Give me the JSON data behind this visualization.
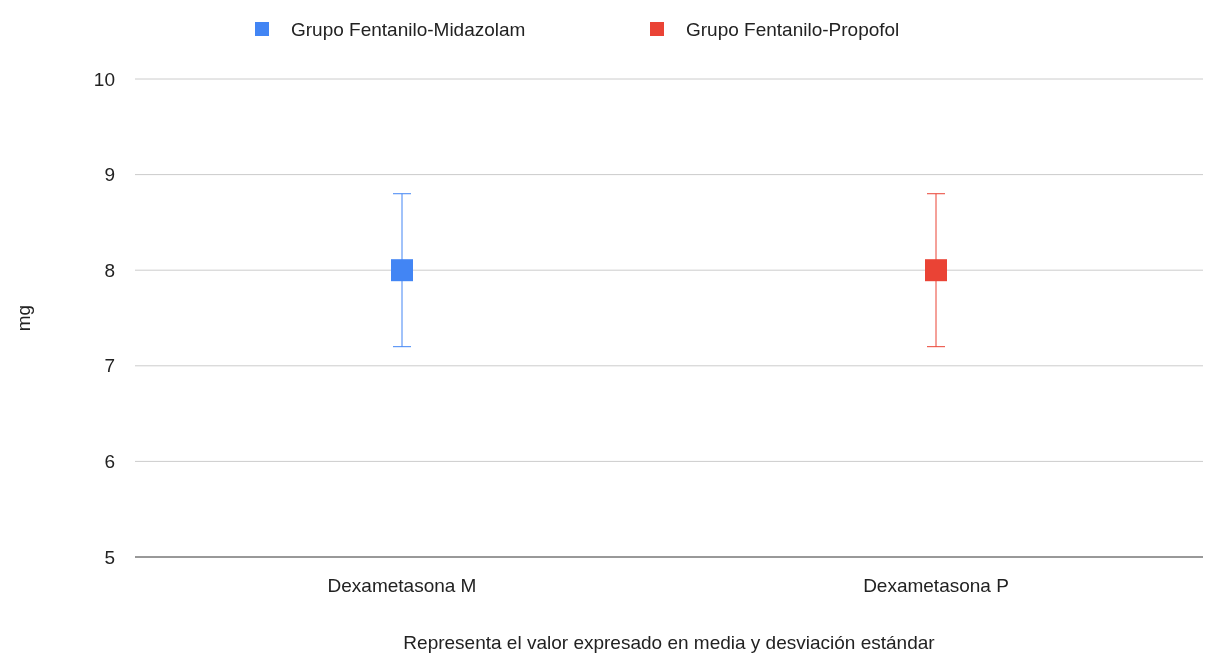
{
  "chart_data": {
    "type": "scatter",
    "categories": [
      "Dexametasona M",
      "Dexametasona P"
    ],
    "series": [
      {
        "name": "Grupo Fentanilo-Midazolam",
        "color": "#4285f4",
        "values": [
          8,
          null
        ],
        "errors": [
          0.8,
          null
        ]
      },
      {
        "name": "Grupo Fentanilo-Propofol",
        "color": "#ea4335",
        "values": [
          null,
          8
        ],
        "errors": [
          null,
          0.8
        ]
      }
    ],
    "xlabel": "Representa el valor expresado en media y desviación estándar",
    "ylabel": "mg",
    "ylim": [
      5,
      10
    ],
    "yticks": [
      5,
      6,
      7,
      8,
      9,
      10
    ],
    "grid": "y",
    "legend": "top",
    "marker": "square"
  }
}
